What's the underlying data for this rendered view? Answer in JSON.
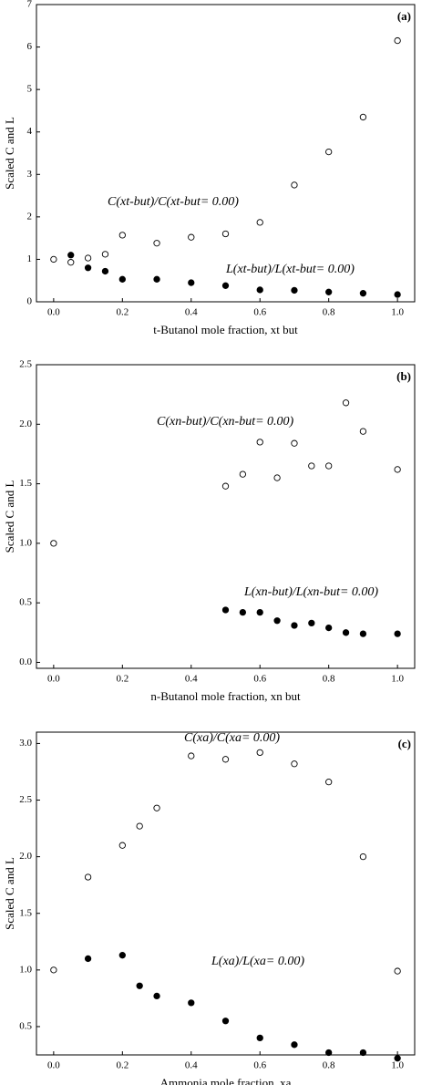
{
  "chart_data": [
    {
      "type": "scatter",
      "panel_label": "(a)",
      "x_label": "t-Butanol mole fraction, xt but",
      "y_label": "Scaled C and L",
      "xlim": [
        -0.05,
        1.05
      ],
      "ylim": [
        0,
        7
      ],
      "xticks": [
        {
          "value": 0,
          "label": "0.0"
        },
        {
          "value": 0.2,
          "label": "0.2"
        },
        {
          "value": 0.4,
          "label": "0.4"
        },
        {
          "value": 0.6,
          "label": "0.6"
        },
        {
          "value": 0.8,
          "label": "0.8"
        },
        {
          "value": 1,
          "label": "1.0"
        }
      ],
      "yticks": [
        0,
        1,
        2,
        3,
        4,
        5,
        6,
        7
      ],
      "annotations": [
        "C(xt-but)/C(xt-but= 0.00)",
        "L(xt-but)/L(xt-but= 0.00)"
      ],
      "series": [
        {
          "color": "#000000",
          "fill": "#ffffff",
          "x": [
            0,
            0.05,
            0.1,
            0.15,
            0.2,
            0.3,
            0.4,
            0.5,
            0.6,
            0.7,
            0.8,
            0.9,
            1.0
          ],
          "values": [
            1.0,
            0.93,
            1.03,
            1.12,
            1.57,
            1.38,
            1.52,
            1.6,
            1.87,
            2.75,
            3.53,
            4.35,
            6.15
          ]
        },
        {
          "color": "#000000",
          "fill": "#000000",
          "x": [
            0.05,
            0.1,
            0.15,
            0.2,
            0.3,
            0.4,
            0.5,
            0.6,
            0.7,
            0.8,
            0.9,
            1.0
          ],
          "values": [
            1.1,
            0.8,
            0.72,
            0.53,
            0.53,
            0.45,
            0.38,
            0.28,
            0.27,
            0.23,
            0.2,
            0.17
          ]
        }
      ]
    },
    {
      "type": "scatter",
      "panel_label": "(b)",
      "x_label": "n-Butanol mole fraction, xn but",
      "y_label": "Scaled C and L",
      "xlim": [
        -0.05,
        1.05
      ],
      "ylim": [
        -0.05,
        2.5
      ],
      "xticks": [
        {
          "value": 0,
          "label": "0.0"
        },
        {
          "value": 0.2,
          "label": "0.2"
        },
        {
          "value": 0.4,
          "label": "0.4"
        },
        {
          "value": 0.6,
          "label": "0.6"
        },
        {
          "value": 0.8,
          "label": "0.8"
        },
        {
          "value": 1,
          "label": "1.0"
        }
      ],
      "yticks": [
        {
          "value": 0,
          "label": "0.0"
        },
        {
          "value": 0.5,
          "label": "0.5"
        },
        {
          "value": 1,
          "label": "1.0"
        },
        {
          "value": 1.5,
          "label": "1.5"
        },
        {
          "value": 2,
          "label": "2.0"
        },
        {
          "value": 2.5,
          "label": "2.5"
        }
      ],
      "annotations": [
        "C(xn-but)/C(xn-but= 0.00)",
        "L(xn-but)/L(xn-but= 0.00)"
      ],
      "series": [
        {
          "color": "#000000",
          "fill": "#ffffff",
          "x": [
            0,
            0.5,
            0.55,
            0.6,
            0.65,
            0.7,
            0.75,
            0.8,
            0.85,
            0.9,
            1.0
          ],
          "values": [
            1.0,
            1.48,
            1.58,
            1.85,
            1.55,
            1.84,
            1.65,
            1.65,
            2.18,
            1.94,
            1.62
          ]
        },
        {
          "color": "#000000",
          "fill": "#000000",
          "x": [
            0.5,
            0.55,
            0.6,
            0.65,
            0.7,
            0.75,
            0.8,
            0.85,
            0.9,
            1.0
          ],
          "values": [
            0.44,
            0.42,
            0.42,
            0.35,
            0.31,
            0.33,
            0.29,
            0.25,
            0.24,
            0.24
          ]
        }
      ]
    },
    {
      "type": "scatter",
      "panel_label": "(c)",
      "x_label": "Ammonia mole fraction, xa",
      "y_label": "Scaled C and L",
      "xlim": [
        -0.05,
        1.05
      ],
      "ylim": [
        0.25,
        3.1
      ],
      "xticks": [
        {
          "value": 0,
          "label": "0.0"
        },
        {
          "value": 0.2,
          "label": "0.2"
        },
        {
          "value": 0.4,
          "label": "0.4"
        },
        {
          "value": 0.6,
          "label": "0.6"
        },
        {
          "value": 0.8,
          "label": "0.8"
        },
        {
          "value": 1,
          "label": "1.0"
        }
      ],
      "yticks": [
        {
          "value": 0.5,
          "label": "0.5"
        },
        {
          "value": 1,
          "label": "1.0"
        },
        {
          "value": 1.5,
          "label": "1.5"
        },
        {
          "value": 2,
          "label": "2.0"
        },
        {
          "value": 2.5,
          "label": "2.5"
        },
        {
          "value": 3,
          "label": "3.0"
        }
      ],
      "annotations": [
        "C(xa)/C(xa= 0.00)",
        "L(xa)/L(xa= 0.00)"
      ],
      "series": [
        {
          "color": "#000000",
          "fill": "#ffffff",
          "x": [
            0,
            0.1,
            0.2,
            0.25,
            0.3,
            0.4,
            0.5,
            0.6,
            0.7,
            0.8,
            0.9,
            1.0
          ],
          "values": [
            1.0,
            1.82,
            2.1,
            2.27,
            2.43,
            2.89,
            2.86,
            2.92,
            2.82,
            2.66,
            2.0,
            0.99
          ]
        },
        {
          "color": "#000000",
          "fill": "#000000",
          "x": [
            0.1,
            0.2,
            0.25,
            0.3,
            0.4,
            0.5,
            0.6,
            0.7,
            0.8,
            0.9,
            1.0
          ],
          "values": [
            1.1,
            1.13,
            0.86,
            0.77,
            0.71,
            0.55,
            0.4,
            0.34,
            0.27,
            0.27,
            0.22
          ]
        }
      ]
    }
  ]
}
